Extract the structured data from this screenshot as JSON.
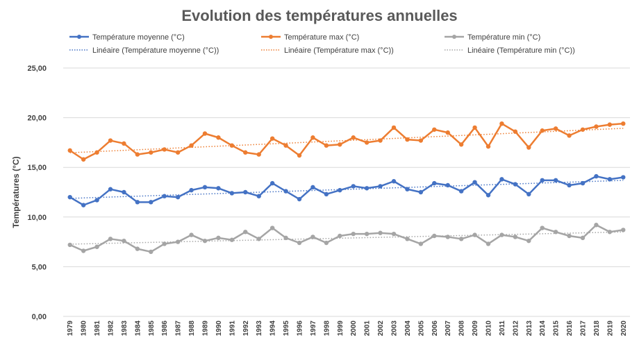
{
  "chart_data": {
    "type": "line",
    "title": "Evolution des températures annuelles",
    "ylabel": "Températures (°C)",
    "xlabel": "",
    "ylim": [
      0,
      25
    ],
    "yticks": [
      "0,00",
      "5,00",
      "10,00",
      "15,00",
      "20,00",
      "25,00"
    ],
    "grid": true,
    "legend_position": "top",
    "x": [
      "1979",
      "1980",
      "1981",
      "1982",
      "1983",
      "1984",
      "1985",
      "1986",
      "1987",
      "1988",
      "1989",
      "1990",
      "1991",
      "1992",
      "1993",
      "1994",
      "1995",
      "1996",
      "1997",
      "1998",
      "1999",
      "2000",
      "2001",
      "2002",
      "2003",
      "2004",
      "2005",
      "2006",
      "2007",
      "2008",
      "2009",
      "2010",
      "2011",
      "2012",
      "2013",
      "2014",
      "2015",
      "2016",
      "2017",
      "2018",
      "2019",
      "2020"
    ],
    "series": [
      {
        "name": "Température moyenne (°C)",
        "color": "#4472c4",
        "values": [
          12.0,
          11.2,
          11.7,
          12.8,
          12.5,
          11.5,
          11.5,
          12.1,
          12.0,
          12.7,
          13.0,
          12.9,
          12.4,
          12.5,
          12.1,
          13.4,
          12.6,
          11.8,
          13.0,
          12.3,
          12.7,
          13.1,
          12.9,
          13.1,
          13.6,
          12.8,
          12.5,
          13.4,
          13.2,
          12.6,
          13.5,
          12.2,
          13.8,
          13.3,
          12.3,
          13.7,
          13.7,
          13.2,
          13.4,
          14.1,
          13.8,
          14.0
        ]
      },
      {
        "name": "Température max (°C)",
        "color": "#ed7d31",
        "values": [
          16.7,
          15.8,
          16.5,
          17.7,
          17.4,
          16.3,
          16.5,
          16.8,
          16.5,
          17.2,
          18.4,
          18.0,
          17.2,
          16.5,
          16.3,
          17.9,
          17.2,
          16.2,
          18.0,
          17.2,
          17.3,
          18.0,
          17.5,
          17.7,
          19.0,
          17.8,
          17.7,
          18.8,
          18.5,
          17.3,
          19.0,
          17.1,
          19.4,
          18.6,
          17.0,
          18.7,
          18.9,
          18.2,
          18.8,
          19.1,
          19.3,
          19.4
        ]
      },
      {
        "name": "Température min (°C)",
        "color": "#a5a5a5",
        "values": [
          7.2,
          6.6,
          7.0,
          7.8,
          7.6,
          6.8,
          6.5,
          7.3,
          7.5,
          8.2,
          7.6,
          7.9,
          7.7,
          8.5,
          7.8,
          8.9,
          7.9,
          7.4,
          8.0,
          7.4,
          8.1,
          8.3,
          8.3,
          8.4,
          8.3,
          7.8,
          7.3,
          8.1,
          8.0,
          7.8,
          8.2,
          7.3,
          8.2,
          8.0,
          7.6,
          8.9,
          8.5,
          8.1,
          7.9,
          9.2,
          8.5,
          8.7
        ]
      }
    ],
    "trendlines": [
      {
        "name": "Linéaire (Température moyenne (°C))",
        "color": "#4472c4",
        "style": "dotted"
      },
      {
        "name": "Linéaire (Température max (°C))",
        "color": "#ed7d31",
        "style": "dotted"
      },
      {
        "name": "Linéaire (Température min (°C))",
        "color": "#a5a5a5",
        "style": "dotted"
      }
    ]
  }
}
